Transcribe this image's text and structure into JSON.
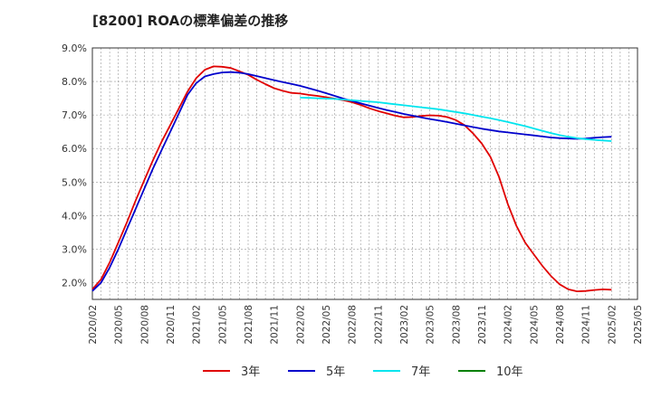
{
  "chart_data": {
    "type": "line",
    "title": "[8200]  ROAの標準偏差の推移",
    "y_tick_labels": [
      "2.0%",
      "3.0%",
      "4.0%",
      "5.0%",
      "6.0%",
      "7.0%",
      "8.0%",
      "9.0%"
    ],
    "y_ticks": [
      2,
      3,
      4,
      5,
      6,
      7,
      8,
      9
    ],
    "ylim": [
      1.5,
      9.0
    ],
    "x_tick_labels": [
      "2020/02",
      "2020/05",
      "2020/08",
      "2020/11",
      "2021/02",
      "2021/05",
      "2021/08",
      "2021/11",
      "2022/02",
      "2022/05",
      "2022/08",
      "2022/11",
      "2023/02",
      "2023/05",
      "2023/08",
      "2023/11",
      "2024/02",
      "2024/05",
      "2024/08",
      "2024/11",
      "2025/02",
      "2025/05"
    ],
    "grid": true,
    "legend_position": "bottom",
    "series": [
      {
        "name": "3年",
        "color": "#e00000",
        "x": [
          "2020/02",
          "2020/03",
          "2020/04",
          "2020/05",
          "2020/06",
          "2020/07",
          "2020/08",
          "2020/09",
          "2020/10",
          "2020/11",
          "2020/12",
          "2021/01",
          "2021/02",
          "2021/03",
          "2021/04",
          "2021/05",
          "2021/06",
          "2021/07",
          "2021/08",
          "2021/09",
          "2021/10",
          "2021/11",
          "2021/12",
          "2022/01",
          "2022/02",
          "2022/03",
          "2022/04",
          "2022/05",
          "2022/06",
          "2022/07",
          "2022/08",
          "2022/09",
          "2022/10",
          "2022/11",
          "2022/12",
          "2023/01",
          "2023/02",
          "2023/03",
          "2023/04",
          "2023/05",
          "2023/06",
          "2023/07",
          "2023/08",
          "2023/09",
          "2023/10",
          "2023/11",
          "2023/12",
          "2024/01",
          "2024/02",
          "2024/03",
          "2024/04",
          "2024/05",
          "2024/06",
          "2024/07",
          "2024/08",
          "2024/09",
          "2024/10",
          "2024/11",
          "2024/12",
          "2025/01",
          "2025/02"
        ],
        "values": [
          1.8,
          2.1,
          2.6,
          3.2,
          3.8,
          4.45,
          5.05,
          5.65,
          6.2,
          6.7,
          7.2,
          7.7,
          8.1,
          8.35,
          8.45,
          8.44,
          8.4,
          8.3,
          8.2,
          8.05,
          7.92,
          7.8,
          7.72,
          7.66,
          7.64,
          7.6,
          7.57,
          7.53,
          7.49,
          7.44,
          7.38,
          7.3,
          7.2,
          7.12,
          7.05,
          6.98,
          6.93,
          6.94,
          6.97,
          6.99,
          6.98,
          6.94,
          6.85,
          6.7,
          6.45,
          6.15,
          5.75,
          5.15,
          4.35,
          3.7,
          3.2,
          2.85,
          2.5,
          2.2,
          1.95,
          1.8,
          1.74,
          1.75,
          1.78,
          1.8,
          1.79
        ]
      },
      {
        "name": "5年",
        "color": "#0000cc",
        "x": [
          "2020/02",
          "2020/03",
          "2020/04",
          "2020/05",
          "2020/06",
          "2020/07",
          "2020/08",
          "2020/09",
          "2020/10",
          "2020/11",
          "2020/12",
          "2021/01",
          "2021/02",
          "2021/03",
          "2021/04",
          "2021/05",
          "2021/06",
          "2021/07",
          "2021/08",
          "2021/09",
          "2021/10",
          "2021/11",
          "2021/12",
          "2022/01",
          "2022/02",
          "2022/03",
          "2022/04",
          "2022/05",
          "2022/06",
          "2022/07",
          "2022/08",
          "2022/09",
          "2022/10",
          "2022/11",
          "2022/12",
          "2023/01",
          "2023/02",
          "2023/03",
          "2023/04",
          "2023/05",
          "2023/06",
          "2023/07",
          "2023/08",
          "2023/09",
          "2023/10",
          "2023/11",
          "2023/12",
          "2024/01",
          "2024/02",
          "2024/03",
          "2024/04",
          "2024/05",
          "2024/06",
          "2024/07",
          "2024/08",
          "2024/09",
          "2024/10",
          "2024/11",
          "2024/12",
          "2025/01",
          "2025/02"
        ],
        "values": [
          1.75,
          2.0,
          2.45,
          3.0,
          3.6,
          4.2,
          4.8,
          5.4,
          5.95,
          6.5,
          7.05,
          7.6,
          7.95,
          8.15,
          8.22,
          8.27,
          8.28,
          8.26,
          8.22,
          8.16,
          8.1,
          8.04,
          7.98,
          7.93,
          7.87,
          7.8,
          7.73,
          7.65,
          7.57,
          7.49,
          7.42,
          7.35,
          7.28,
          7.21,
          7.15,
          7.09,
          7.03,
          6.98,
          6.93,
          6.88,
          6.84,
          6.79,
          6.74,
          6.69,
          6.64,
          6.59,
          6.55,
          6.51,
          6.48,
          6.45,
          6.42,
          6.39,
          6.36,
          6.33,
          6.31,
          6.3,
          6.29,
          6.3,
          6.32,
          6.34,
          6.35
        ]
      },
      {
        "name": "7年",
        "color": "#00e5ee",
        "x": [
          "2022/02",
          "2022/03",
          "2022/04",
          "2022/05",
          "2022/06",
          "2022/07",
          "2022/08",
          "2022/09",
          "2022/10",
          "2022/11",
          "2022/12",
          "2023/01",
          "2023/02",
          "2023/03",
          "2023/04",
          "2023/05",
          "2023/06",
          "2023/07",
          "2023/08",
          "2023/09",
          "2023/10",
          "2023/11",
          "2023/12",
          "2024/01",
          "2024/02",
          "2024/03",
          "2024/04",
          "2024/05",
          "2024/06",
          "2024/07",
          "2024/08",
          "2024/09",
          "2024/10",
          "2024/11",
          "2024/12",
          "2025/01",
          "2025/02"
        ],
        "values": [
          7.52,
          7.51,
          7.5,
          7.49,
          7.48,
          7.46,
          7.44,
          7.42,
          7.4,
          7.38,
          7.35,
          7.32,
          7.29,
          7.26,
          7.23,
          7.2,
          7.17,
          7.13,
          7.09,
          7.05,
          7.0,
          6.95,
          6.9,
          6.85,
          6.79,
          6.73,
          6.67,
          6.6,
          6.53,
          6.46,
          6.4,
          6.35,
          6.31,
          6.28,
          6.26,
          6.24,
          6.22
        ]
      },
      {
        "name": "10年",
        "color": "#008000",
        "x": [],
        "values": []
      }
    ]
  }
}
